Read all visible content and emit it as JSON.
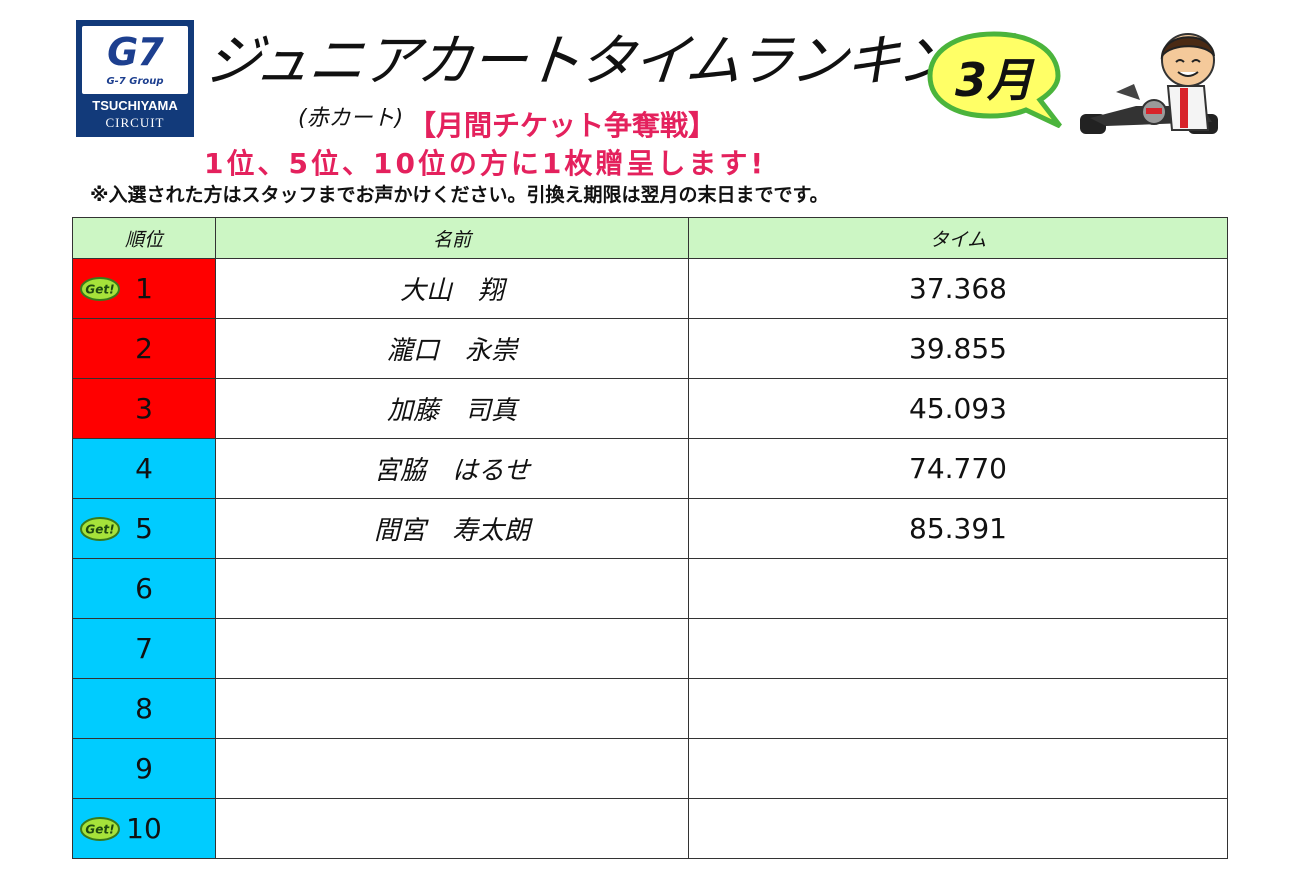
{
  "logo": {
    "mark": "G7",
    "group": "G-7 Group",
    "name_line1": "TSUCHIYAMA",
    "name_line2": "CIRCUIT"
  },
  "title": "ジュニアカートタイムランキング",
  "subcategory": "(赤カート)",
  "ticket_banner": "【月間チケット争奪戦】",
  "prize_line": "1位、5位、10位の方に1枚贈呈します!",
  "note": "※入選された方はスタッフまでお声かけください。引換え期限は翌月の末日までです。",
  "month_badge": "3月",
  "get_badge": "Get!",
  "table": {
    "headers": [
      "順位",
      "名前",
      "タイム"
    ],
    "rows": [
      {
        "rank": "1",
        "name": "大山　翔",
        "time": "37.368",
        "color": "#ff0000",
        "get": true
      },
      {
        "rank": "2",
        "name": "瀧口　永崇",
        "time": "39.855",
        "color": "#ff0000",
        "get": false
      },
      {
        "rank": "3",
        "name": "加藤　司真",
        "time": "45.093",
        "color": "#ff0000",
        "get": false
      },
      {
        "rank": "4",
        "name": "宮脇　はるせ",
        "time": "74.770",
        "color": "#00ccff",
        "get": false
      },
      {
        "rank": "5",
        "name": "間宮　寿太朗",
        "time": "85.391",
        "color": "#00ccff",
        "get": true
      },
      {
        "rank": "6",
        "name": "",
        "time": "",
        "color": "#00ccff",
        "get": false
      },
      {
        "rank": "7",
        "name": "",
        "time": "",
        "color": "#00ccff",
        "get": false
      },
      {
        "rank": "8",
        "name": "",
        "time": "",
        "color": "#00ccff",
        "get": false
      },
      {
        "rank": "9",
        "name": "",
        "time": "",
        "color": "#00ccff",
        "get": false
      },
      {
        "rank": "10",
        "name": "",
        "time": "",
        "color": "#00ccff",
        "get": true
      }
    ]
  }
}
